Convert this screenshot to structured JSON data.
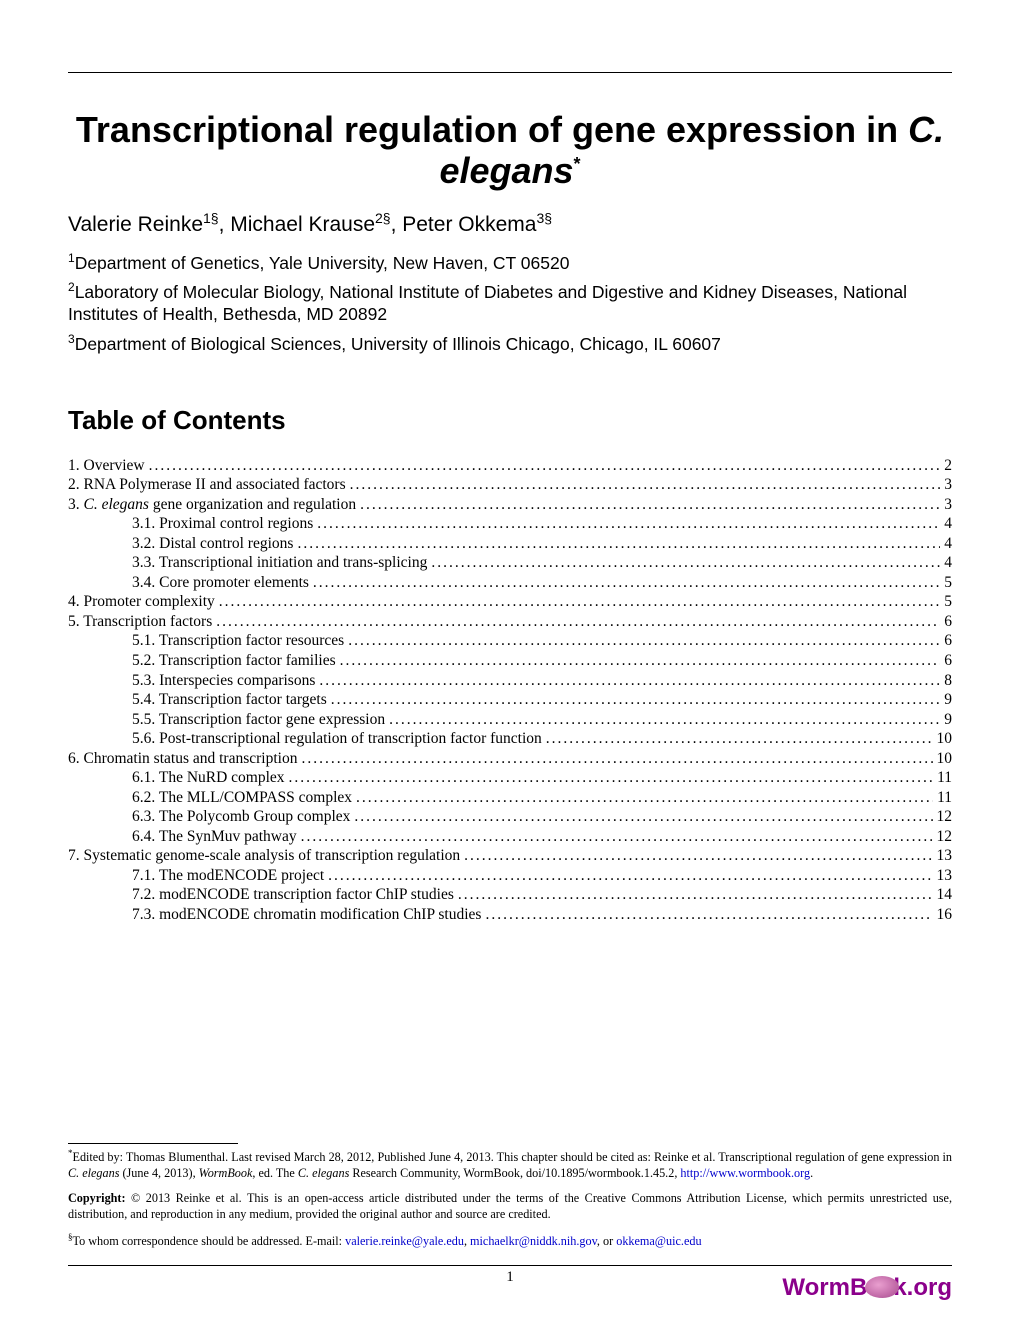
{
  "title_prefix": "Transcriptional regulation of gene expression in ",
  "title_species": "C. elegans",
  "title_star": "*",
  "authors_html": "Valerie Reinke|1§|, Michael Krause|2§|, Peter Okkema|3§",
  "affiliations": [
    {
      "sup": "1",
      "text": "Department of Genetics, Yale University, New Haven, CT 06520"
    },
    {
      "sup": "2",
      "text": "Laboratory of Molecular Biology, National Institute of Diabetes and Digestive and Kidney Diseases, National Institutes of Health, Bethesda, MD 20892"
    },
    {
      "sup": "3",
      "text": "Department of Biological Sciences, University of Illinois Chicago, Chicago, IL 60607"
    }
  ],
  "toc_heading": "Table of Contents",
  "toc": [
    {
      "level": 1,
      "label": "1. Overview",
      "page": "2"
    },
    {
      "level": 1,
      "label": "2. RNA Polymerase II and associated factors",
      "page": "3"
    },
    {
      "level": 1,
      "label_prefix": "3. ",
      "label_ital": "C. elegans",
      "label_suffix": " gene organization and regulation",
      "page": "3"
    },
    {
      "level": 2,
      "label": "3.1. Proximal control regions",
      "page": "4"
    },
    {
      "level": 2,
      "label": "3.2. Distal control regions",
      "page": "4"
    },
    {
      "level": 2,
      "label": "3.3. Transcriptional initiation and trans-splicing",
      "page": "4"
    },
    {
      "level": 2,
      "label": "3.4. Core promoter elements",
      "page": "5"
    },
    {
      "level": 1,
      "label": "4. Promoter complexity",
      "page": "5"
    },
    {
      "level": 1,
      "label": "5. Transcription factors",
      "page": "6"
    },
    {
      "level": 2,
      "label": "5.1. Transcription factor resources",
      "page": "6"
    },
    {
      "level": 2,
      "label": "5.2. Transcription factor families",
      "page": "6"
    },
    {
      "level": 2,
      "label": "5.3. Interspecies comparisons",
      "page": "8"
    },
    {
      "level": 2,
      "label": "5.4. Transcription factor targets",
      "page": "9"
    },
    {
      "level": 2,
      "label": "5.5. Transcription factor gene expression",
      "page": "9"
    },
    {
      "level": 2,
      "label": "5.6. Post-transcriptional regulation of transcription factor function",
      "page": "10"
    },
    {
      "level": 1,
      "label": "6. Chromatin status and transcription",
      "page": "10"
    },
    {
      "level": 2,
      "label": "6.1. The NuRD complex",
      "page": "11"
    },
    {
      "level": 2,
      "label": "6.2. The MLL/COMPASS complex",
      "page": "11"
    },
    {
      "level": 2,
      "label": "6.3. The Polycomb Group complex",
      "page": "12"
    },
    {
      "level": 2,
      "label": "6.4. The SynMuv pathway",
      "page": "12"
    },
    {
      "level": 1,
      "label": "7. Systematic genome-scale analysis of transcription regulation",
      "page": "13"
    },
    {
      "level": 2,
      "label": "7.1. The modENCODE project",
      "page": "13"
    },
    {
      "level": 2,
      "label": "7.2. modENCODE transcription factor ChIP studies",
      "page": "14"
    },
    {
      "level": 2,
      "label": "7.3. modENCODE chromatin modification ChIP studies",
      "page": "16"
    }
  ],
  "footnotes": {
    "edited_prefix": "Edited by: Thomas Blumenthal. Last revised March 28, 2012, Published June 4, 2013. This chapter should be cited as: Reinke et al. Transcriptional regulation of gene expression in ",
    "edited_ital": "C. elegans",
    "edited_mid": " (June 4, 2013), ",
    "edited_ital2": "WormBook",
    "edited_mid2": ", ed. The ",
    "edited_ital3": "C. elegans",
    "edited_suffix": " Research Community, WormBook, doi/10.1895/wormbook.1.45.2, ",
    "edited_link": "http://www.wormbook.org",
    "edited_end": ".",
    "copyright_label": "Copyright:",
    "copyright_text": " © 2013 Reinke et al. This is an open-access article distributed under the terms of the Creative Commons Attribution License, which permits unrestricted use, distribution, and reproduction in any medium, provided the original author and source are credited.",
    "corr_prefix": "To whom correspondence should be addressed. E-mail: ",
    "corr_email1": "valerie.reinke@yale.edu",
    "corr_sep1": ", ",
    "corr_email2": "michaelkr@niddk.nih.gov",
    "corr_sep2": ", or ",
    "corr_email3": "okkema@uic.edu"
  },
  "page_number": "1",
  "logo": {
    "worm": "WormB",
    "org": "k.org"
  },
  "colors": {
    "text": "#000000",
    "link": "#0000cc",
    "logo": "#8b008b"
  }
}
